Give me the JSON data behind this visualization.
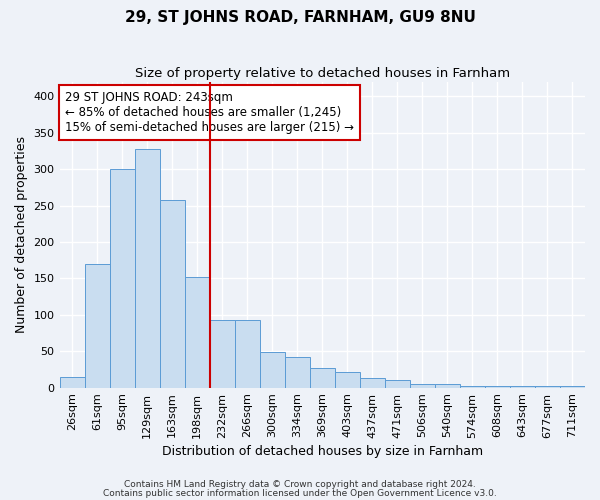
{
  "title": "29, ST JOHNS ROAD, FARNHAM, GU9 8NU",
  "subtitle": "Size of property relative to detached houses in Farnham",
  "xlabel": "Distribution of detached houses by size in Farnham",
  "ylabel": "Number of detached properties",
  "bar_labels": [
    "26sqm",
    "61sqm",
    "95sqm",
    "129sqm",
    "163sqm",
    "198sqm",
    "232sqm",
    "266sqm",
    "300sqm",
    "334sqm",
    "369sqm",
    "403sqm",
    "437sqm",
    "471sqm",
    "506sqm",
    "540sqm",
    "574sqm",
    "608sqm",
    "643sqm",
    "677sqm",
    "711sqm"
  ],
  "bar_values": [
    15,
    170,
    300,
    327,
    258,
    152,
    93,
    93,
    49,
    42,
    27,
    21,
    13,
    11,
    5,
    5,
    2,
    2,
    2,
    2,
    2
  ],
  "bar_color": "#c9ddf0",
  "bar_edge_color": "#5b9bd5",
  "vline_x_index": 6,
  "vline_color": "#cc0000",
  "annotation_text": "29 ST JOHNS ROAD: 243sqm\n← 85% of detached houses are smaller (1,245)\n15% of semi-detached houses are larger (215) →",
  "annotation_box_color": "#ffffff",
  "annotation_box_edge": "#cc0000",
  "ylim": [
    0,
    420
  ],
  "yticks": [
    0,
    50,
    100,
    150,
    200,
    250,
    300,
    350,
    400
  ],
  "footer1": "Contains HM Land Registry data © Crown copyright and database right 2024.",
  "footer2": "Contains public sector information licensed under the Open Government Licence v3.0.",
  "background_color": "#eef2f8",
  "grid_color": "#ffffff",
  "title_fontsize": 11,
  "subtitle_fontsize": 9.5,
  "axis_label_fontsize": 9,
  "tick_fontsize": 8,
  "annotation_fontsize": 8.5,
  "footer_fontsize": 6.5
}
